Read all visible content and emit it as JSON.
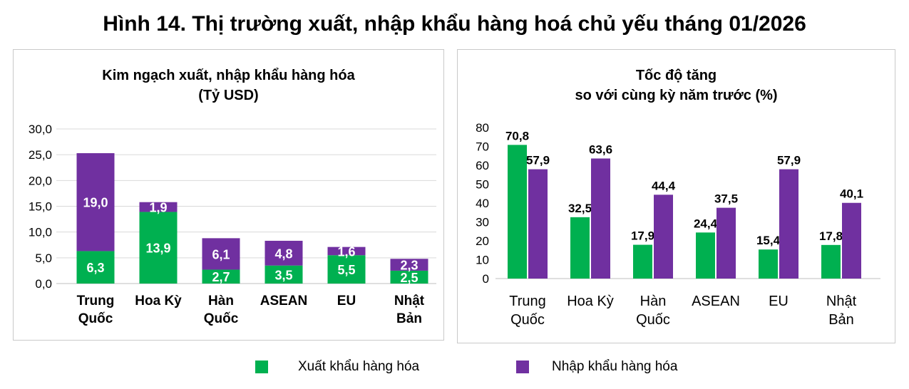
{
  "title": "Hình 14. Thị trường xuất, nhập khẩu hàng hoá chủ yếu tháng 01/2026",
  "colors": {
    "export": "#00b050",
    "import": "#7030a0"
  },
  "legend": {
    "export_label": "Xuất khẩu hàng hóa",
    "import_label": "Nhập khẩu hàng hóa"
  },
  "left_chart": {
    "title_line1": "Kim ngạch xuất, nhập khẩu hàng hóa",
    "title_line2": "(Tỷ USD)"
  },
  "right_chart": {
    "title_line1": "Tốc độ tăng",
    "title_line2": "so với cùng kỳ năm trước (%)"
  },
  "chart_data": [
    {
      "type": "bar",
      "stacked": true,
      "title": "Kim ngạch xuất, nhập khẩu hàng hóa (Tỷ USD)",
      "categories": [
        [
          "Trung",
          "Quốc"
        ],
        [
          "Hoa Kỳ"
        ],
        [
          "Hàn",
          "Quốc"
        ],
        [
          "ASEAN"
        ],
        [
          "EU"
        ],
        [
          "Nhật",
          "Bản"
        ]
      ],
      "series": [
        {
          "name": "Xuất khẩu hàng hóa",
          "values": [
            6.3,
            13.9,
            2.7,
            3.5,
            5.5,
            2.5
          ]
        },
        {
          "name": "Nhập khẩu hàng hóa",
          "values": [
            19.0,
            1.9,
            6.1,
            4.8,
            1.6,
            2.3
          ]
        }
      ],
      "data_labels": [
        [
          "6,3",
          "13,9",
          "2,7",
          "3,5",
          "5,5",
          "2,5"
        ],
        [
          "19,0",
          "1,9",
          "6,1",
          "4,8",
          "1,6",
          "2,3"
        ]
      ],
      "ylim": [
        0,
        30
      ],
      "yticks": [
        0,
        5,
        10,
        15,
        20,
        25,
        30
      ],
      "ytick_labels": [
        "0,0",
        "5,0",
        "10,0",
        "15,0",
        "20,0",
        "25,0",
        "30,0"
      ],
      "grid": true,
      "legend": "bottom"
    },
    {
      "type": "bar",
      "stacked": false,
      "title": "Tốc độ tăng so với cùng kỳ năm trước (%)",
      "categories": [
        [
          "Trung",
          "Quốc"
        ],
        [
          "Hoa Kỳ"
        ],
        [
          "Hàn",
          "Quốc"
        ],
        [
          "ASEAN"
        ],
        [
          "EU"
        ],
        [
          "Nhật",
          "Bản"
        ]
      ],
      "series": [
        {
          "name": "Xuất khẩu hàng hóa",
          "values": [
            70.8,
            32.5,
            17.9,
            24.4,
            15.4,
            17.8
          ]
        },
        {
          "name": "Nhập khẩu hàng hóa",
          "values": [
            57.9,
            63.6,
            44.4,
            37.5,
            57.9,
            40.1
          ]
        }
      ],
      "data_labels": [
        [
          "70,8",
          "32,5",
          "17,9",
          "24,4",
          "15,4",
          "17,8"
        ],
        [
          "57,9",
          "63,6",
          "44,4",
          "37,5",
          "57,9",
          "40,1"
        ]
      ],
      "ylim": [
        0,
        80
      ],
      "yticks": [
        0,
        10,
        20,
        30,
        40,
        50,
        60,
        70,
        80
      ],
      "ytick_labels": [
        "0",
        "10",
        "20",
        "30",
        "40",
        "50",
        "60",
        "70",
        "80"
      ],
      "grid": false,
      "legend": "bottom"
    }
  ]
}
